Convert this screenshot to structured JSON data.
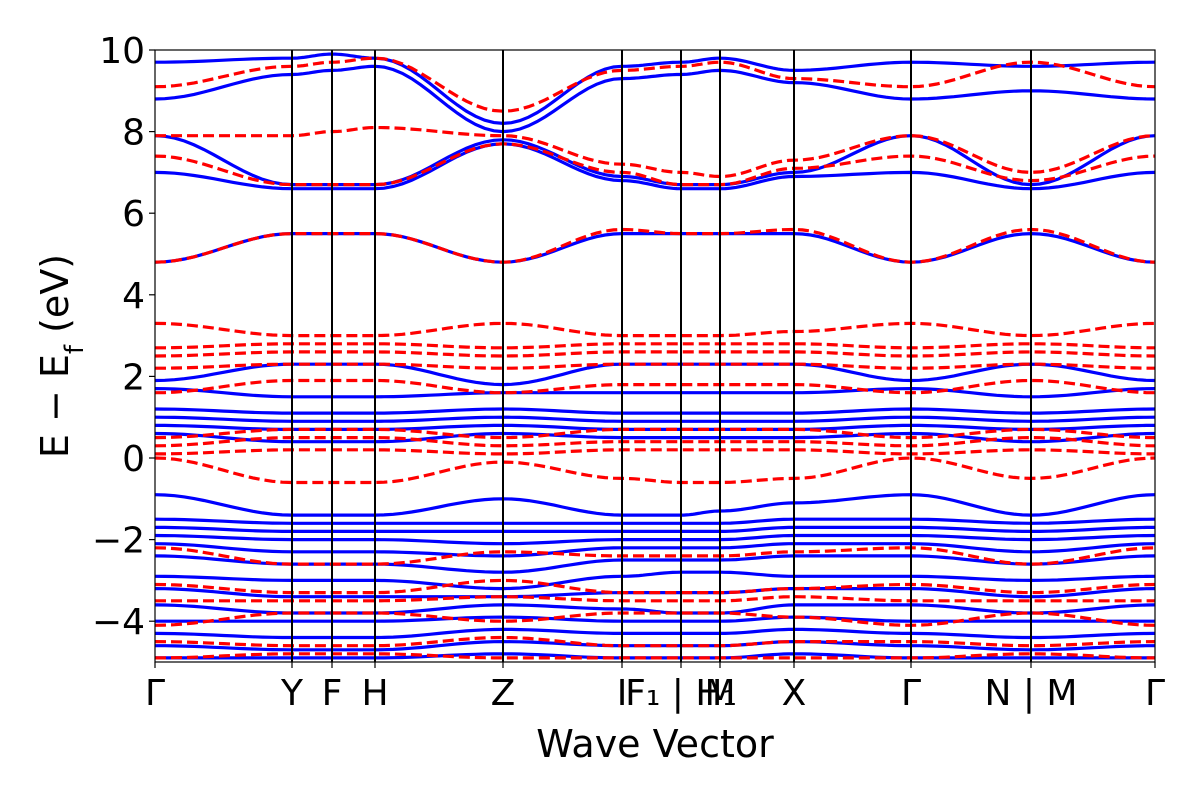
{
  "chart_data": {
    "type": "line",
    "xlabel": "Wave Vector",
    "ylabel": "E − E",
    "ylabel_sub": "f",
    "ylabel_unit": " (eV)",
    "ylim": [
      -5,
      10
    ],
    "yticks": [
      -4,
      -2,
      0,
      2,
      4,
      6,
      8,
      10
    ],
    "ytick_labels": [
      "−4",
      "−2",
      "0",
      "2",
      "4",
      "6",
      "8",
      "10"
    ],
    "xlim": [
      0,
      10
    ],
    "kpoints": [
      {
        "label": "Γ",
        "x": 0.0
      },
      {
        "label": "Y",
        "x": 1.37
      },
      {
        "label": "F",
        "x": 1.77
      },
      {
        "label": "H",
        "x": 2.2
      },
      {
        "label": "Z",
        "x": 3.48
      },
      {
        "label": "I",
        "x": 4.67
      },
      {
        "label": "F₁ | H₁",
        "x": 5.26
      },
      {
        "label": "M",
        "x": 5.65
      },
      {
        "label": "X",
        "x": 6.39
      },
      {
        "label": "Γ",
        "x": 7.56
      },
      {
        "label": "N | M",
        "x": 8.76
      },
      {
        "label": "Γ",
        "x": 10.0
      }
    ],
    "grid": false,
    "legend": "none",
    "series": [
      {
        "style": "solid",
        "color": "#0000ff",
        "bands_at_kpoints": [
          [
            9.7,
            9.8,
            9.9,
            9.8,
            8.2,
            9.6,
            9.7,
            9.8,
            9.5,
            9.7,
            9.6,
            9.7
          ],
          [
            8.8,
            9.4,
            9.5,
            9.6,
            8.0,
            9.3,
            9.4,
            9.5,
            9.2,
            8.8,
            9.0,
            8.8
          ],
          [
            7.9,
            6.7,
            6.7,
            6.7,
            7.8,
            6.9,
            6.7,
            6.7,
            7.0,
            7.9,
            6.7,
            7.9
          ],
          [
            7.0,
            6.6,
            6.6,
            6.6,
            7.7,
            6.8,
            6.6,
            6.6,
            6.9,
            7.0,
            6.6,
            7.0
          ],
          [
            4.8,
            5.5,
            5.5,
            5.5,
            4.8,
            5.5,
            5.5,
            5.5,
            5.5,
            4.8,
            5.5,
            4.8
          ],
          [
            1.9,
            2.3,
            2.3,
            2.3,
            1.8,
            2.3,
            2.3,
            2.3,
            2.3,
            1.9,
            2.3,
            1.9
          ],
          [
            1.7,
            1.5,
            1.5,
            1.5,
            1.6,
            1.6,
            1.6,
            1.6,
            1.6,
            1.7,
            1.5,
            1.7
          ],
          [
            1.2,
            1.1,
            1.1,
            1.1,
            1.2,
            1.1,
            1.1,
            1.1,
            1.1,
            1.2,
            1.1,
            1.2
          ],
          [
            1.0,
            0.9,
            0.9,
            0.9,
            1.0,
            0.9,
            0.9,
            0.9,
            0.9,
            1.0,
            0.9,
            1.0
          ],
          [
            0.8,
            0.7,
            0.7,
            0.7,
            0.8,
            0.7,
            0.7,
            0.7,
            0.7,
            0.8,
            0.7,
            0.8
          ],
          [
            0.6,
            0.4,
            0.4,
            0.4,
            0.6,
            0.5,
            0.5,
            0.5,
            0.5,
            0.6,
            0.4,
            0.6
          ],
          [
            -0.9,
            -1.4,
            -1.4,
            -1.4,
            -1.0,
            -1.4,
            -1.4,
            -1.3,
            -1.1,
            -0.9,
            -1.4,
            -0.9
          ],
          [
            -1.5,
            -1.6,
            -1.6,
            -1.6,
            -1.6,
            -1.6,
            -1.6,
            -1.6,
            -1.5,
            -1.5,
            -1.6,
            -1.5
          ],
          [
            -1.7,
            -1.8,
            -1.8,
            -1.8,
            -1.8,
            -1.8,
            -1.8,
            -1.8,
            -1.7,
            -1.7,
            -1.8,
            -1.7
          ],
          [
            -1.9,
            -2.0,
            -2.0,
            -2.0,
            -2.1,
            -2.0,
            -2.0,
            -2.0,
            -1.9,
            -1.9,
            -2.0,
            -1.9
          ],
          [
            -2.1,
            -2.3,
            -2.3,
            -2.3,
            -2.4,
            -2.2,
            -2.2,
            -2.2,
            -2.1,
            -2.1,
            -2.3,
            -2.1
          ],
          [
            -2.4,
            -2.6,
            -2.6,
            -2.6,
            -2.8,
            -2.5,
            -2.5,
            -2.5,
            -2.4,
            -2.4,
            -2.6,
            -2.4
          ],
          [
            -2.9,
            -3.0,
            -3.0,
            -3.0,
            -3.2,
            -2.9,
            -2.8,
            -2.8,
            -2.9,
            -2.9,
            -3.0,
            -2.9
          ],
          [
            -3.2,
            -3.4,
            -3.4,
            -3.4,
            -3.4,
            -3.3,
            -3.3,
            -3.3,
            -3.2,
            -3.2,
            -3.4,
            -3.2
          ],
          [
            -3.6,
            -3.8,
            -3.8,
            -3.8,
            -3.6,
            -3.7,
            -3.8,
            -3.8,
            -3.6,
            -3.6,
            -3.8,
            -3.6
          ],
          [
            -4.0,
            -4.0,
            -4.0,
            -4.0,
            -3.9,
            -4.0,
            -4.0,
            -4.0,
            -3.9,
            -4.0,
            -4.0,
            -4.0
          ],
          [
            -4.3,
            -4.4,
            -4.4,
            -4.4,
            -4.2,
            -4.3,
            -4.3,
            -4.3,
            -4.2,
            -4.3,
            -4.4,
            -4.3
          ],
          [
            -4.6,
            -4.7,
            -4.7,
            -4.7,
            -4.5,
            -4.6,
            -4.6,
            -4.6,
            -4.5,
            -4.6,
            -4.7,
            -4.6
          ],
          [
            -4.9,
            -4.9,
            -4.9,
            -4.9,
            -4.8,
            -4.9,
            -4.9,
            -4.9,
            -4.8,
            -4.9,
            -4.9,
            -4.9
          ]
        ]
      },
      {
        "style": "dashed",
        "color": "#ff0000",
        "bands_at_kpoints": [
          [
            9.1,
            9.6,
            9.7,
            9.8,
            8.5,
            9.5,
            9.6,
            9.7,
            9.3,
            9.1,
            9.7,
            9.1
          ],
          [
            7.9,
            7.9,
            8.0,
            8.1,
            7.9,
            7.2,
            7.0,
            6.9,
            7.3,
            7.9,
            7.0,
            7.9
          ],
          [
            7.4,
            6.7,
            6.7,
            6.7,
            7.7,
            7.0,
            6.7,
            6.7,
            7.1,
            7.4,
            6.8,
            7.4
          ],
          [
            4.8,
            5.5,
            5.5,
            5.5,
            4.8,
            5.6,
            5.5,
            5.5,
            5.6,
            4.8,
            5.6,
            4.8
          ],
          [
            3.3,
            3.0,
            3.0,
            3.0,
            3.3,
            3.0,
            3.0,
            3.0,
            3.1,
            3.3,
            3.0,
            3.3
          ],
          [
            2.7,
            2.8,
            2.8,
            2.8,
            2.7,
            2.8,
            2.8,
            2.8,
            2.8,
            2.7,
            2.8,
            2.7
          ],
          [
            2.5,
            2.6,
            2.6,
            2.6,
            2.5,
            2.6,
            2.6,
            2.6,
            2.6,
            2.5,
            2.6,
            2.5
          ],
          [
            2.2,
            2.3,
            2.3,
            2.3,
            2.2,
            2.3,
            2.3,
            2.3,
            2.3,
            2.2,
            2.3,
            2.2
          ],
          [
            1.6,
            1.9,
            1.9,
            1.9,
            1.6,
            1.8,
            1.8,
            1.8,
            1.8,
            1.6,
            1.9,
            1.6
          ],
          [
            0.5,
            0.7,
            0.7,
            0.7,
            0.5,
            0.7,
            0.7,
            0.7,
            0.7,
            0.5,
            0.7,
            0.5
          ],
          [
            0.3,
            0.5,
            0.5,
            0.5,
            0.3,
            0.4,
            0.4,
            0.4,
            0.4,
            0.3,
            0.5,
            0.3
          ],
          [
            0.1,
            0.2,
            0.2,
            0.2,
            0.1,
            0.2,
            0.2,
            0.2,
            0.2,
            0.1,
            0.2,
            0.1
          ],
          [
            0.0,
            -0.6,
            -0.6,
            -0.6,
            -0.1,
            -0.5,
            -0.6,
            -0.6,
            -0.5,
            0.0,
            -0.5,
            0.0
          ],
          [
            -2.2,
            -2.6,
            -2.6,
            -2.6,
            -2.3,
            -2.4,
            -2.4,
            -2.4,
            -2.3,
            -2.2,
            -2.6,
            -2.2
          ],
          [
            -3.1,
            -3.3,
            -3.3,
            -3.3,
            -3.0,
            -3.3,
            -3.3,
            -3.3,
            -3.2,
            -3.1,
            -3.3,
            -3.1
          ],
          [
            -3.5,
            -3.5,
            -3.5,
            -3.5,
            -3.4,
            -3.5,
            -3.5,
            -3.5,
            -3.4,
            -3.5,
            -3.5,
            -3.5
          ],
          [
            -4.1,
            -3.8,
            -3.8,
            -3.8,
            -4.0,
            -3.8,
            -3.8,
            -3.8,
            -3.9,
            -4.1,
            -3.8,
            -4.1
          ],
          [
            -4.5,
            -4.6,
            -4.6,
            -4.6,
            -4.4,
            -4.6,
            -4.6,
            -4.6,
            -4.5,
            -4.5,
            -4.6,
            -4.5
          ],
          [
            -4.9,
            -4.8,
            -4.8,
            -4.8,
            -4.9,
            -4.9,
            -4.9,
            -4.9,
            -4.9,
            -4.9,
            -4.8,
            -4.9
          ]
        ]
      }
    ]
  }
}
